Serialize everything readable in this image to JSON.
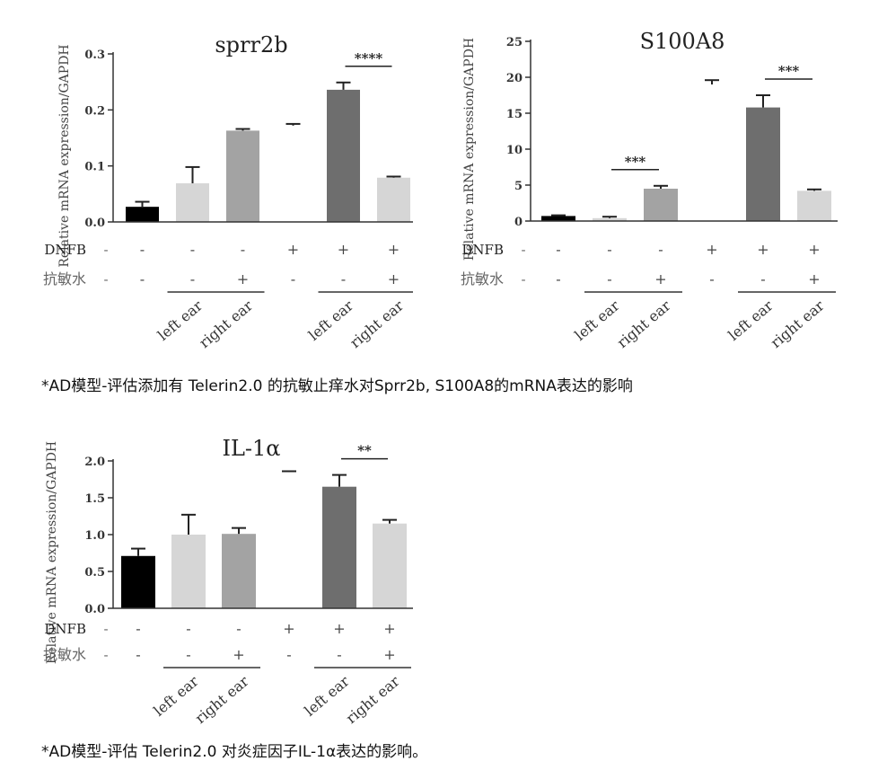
{
  "chart_data": [
    {
      "type": "bar",
      "title": "sprr2b",
      "ylabel": "Relative mRNA expression/GAPDH",
      "ylim": [
        0,
        0.3
      ],
      "yticks": [
        "0.0",
        "0.1",
        "0.2",
        "0.3"
      ],
      "row_labels": [
        "DNFB",
        "抗敏水"
      ],
      "conditions": {
        "DNFB": [
          "-",
          "-",
          "-",
          "+",
          "+",
          "+"
        ],
        "抗敏水": [
          "-",
          "-",
          "+",
          "-",
          "-",
          "+"
        ]
      },
      "group_labels": [
        "left ear",
        "right ear",
        "left ear",
        "right ear"
      ],
      "values": [
        0.027,
        0.069,
        0.163,
        0.172,
        0.236,
        0.079
      ],
      "errors": [
        0.009,
        0.029,
        0.003,
        0.003,
        0.013,
        0.002
      ],
      "colors": [
        "#000000",
        "#d6d6d6",
        "#a3a3a3",
        "#ffffff",
        "#6e6e6e",
        "#d6d6d6"
      ],
      "significance": [
        {
          "from": 4,
          "to": 5,
          "label": "****"
        }
      ]
    },
    {
      "type": "bar",
      "title": "S100A8",
      "ylabel": "Relative mRNA expression/GAPDH",
      "ylim": [
        0,
        25
      ],
      "yticks": [
        "0",
        "5",
        "10",
        "15",
        "20",
        "25"
      ],
      "row_labels": [
        "DNFB",
        "抗敏水"
      ],
      "conditions": {
        "DNFB": [
          "-",
          "-",
          "-",
          "+",
          "+",
          "+"
        ],
        "抗敏水": [
          "-",
          "-",
          "+",
          "-",
          "-",
          "+"
        ]
      },
      "group_labels": [
        "left ear",
        "right ear",
        "left ear",
        "right ear"
      ],
      "values": [
        0.7,
        0.4,
        4.5,
        19.0,
        15.8,
        4.2
      ],
      "errors": [
        0.1,
        0.2,
        0.4,
        0.6,
        1.7,
        0.2
      ],
      "colors": [
        "#000000",
        "#d6d6d6",
        "#a3a3a3",
        "#ffffff",
        "#6e6e6e",
        "#d6d6d6"
      ],
      "significance": [
        {
          "from": 1,
          "to": 2,
          "label": "***"
        },
        {
          "from": 4,
          "to": 5,
          "label": "***"
        }
      ]
    },
    {
      "type": "bar",
      "title": "IL-1α",
      "ylabel": "Relative mRNA expression/GAPDH",
      "ylim": [
        0,
        2.0
      ],
      "yticks": [
        "0.0",
        "0.5",
        "1.0",
        "1.5",
        "2.0"
      ],
      "row_labels": [
        "DNFB",
        "抗敏水"
      ],
      "conditions": {
        "DNFB": [
          "-",
          "-",
          "-",
          "+",
          "+",
          "+"
        ],
        "抗敏水": [
          "-",
          "-",
          "+",
          "-",
          "-",
          "+"
        ]
      },
      "group_labels": [
        "left ear",
        "right ear",
        "left ear",
        "right ear"
      ],
      "values": [
        0.71,
        1.0,
        1.01,
        1.85,
        1.65,
        1.15
      ],
      "errors": [
        0.1,
        0.27,
        0.08,
        0.01,
        0.16,
        0.05
      ],
      "colors": [
        "#000000",
        "#d6d6d6",
        "#a3a3a3",
        "#ffffff",
        "#6e6e6e",
        "#d6d6d6"
      ],
      "significance": [
        {
          "from": 4,
          "to": 5,
          "label": "**"
        }
      ]
    }
  ],
  "captions": [
    "*AD模型-评估添加有 Telerin2.0 的抗敏止痒水对Sprr2b, S100A8的mRNA表达的影响",
    "*AD模型-评估 Telerin2.0 对炎症因子IL-1α表达的影响。"
  ]
}
